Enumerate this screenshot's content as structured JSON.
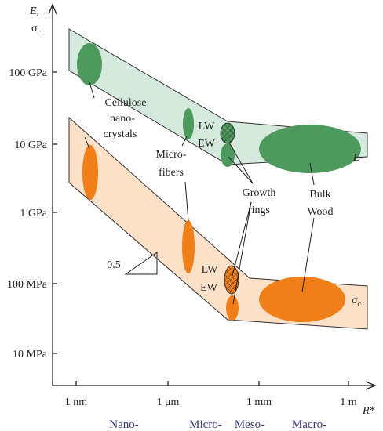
{
  "axes": {
    "y_label": {
      "symbol": "E,",
      "sigma": "σ",
      "sub": "c"
    },
    "x_label": "R*"
  },
  "yticks": [
    "100 GPa",
    "10 GPa",
    "1 GPa",
    "100 MPa",
    "10 MPa"
  ],
  "xticks": [
    "1 nm",
    "1 μm",
    "1 mm",
    "1 m"
  ],
  "regimes": [
    "Nano-",
    "Micro-",
    "Meso-",
    "Macro-"
  ],
  "annotations": {
    "cellulose": [
      "Cellulose",
      "nano-",
      "crystals"
    ],
    "microfibers": [
      "Micro-",
      "fibers"
    ],
    "growth_rings": [
      "Growth",
      "rings"
    ],
    "bulk_wood": [
      "Bulk",
      "Wood"
    ],
    "lw_top": "LW",
    "ew_top": "EW",
    "lw_bottom": "LW",
    "ew_bottom": "EW",
    "slope": "0.5",
    "e_band": "E",
    "sigma_band": {
      "sigma": "σ",
      "sub": "c"
    }
  }
}
